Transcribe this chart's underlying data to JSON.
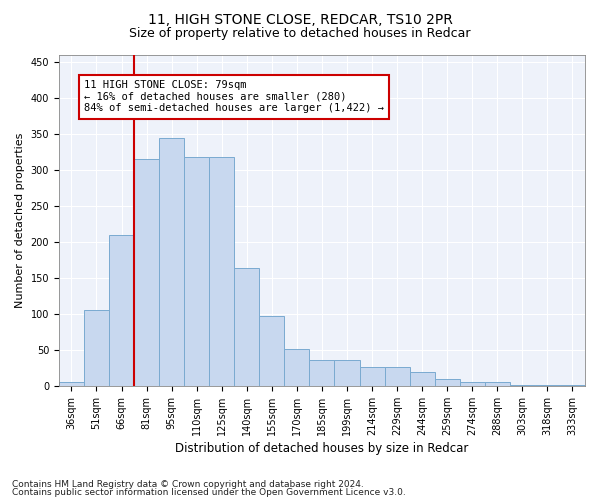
{
  "title1": "11, HIGH STONE CLOSE, REDCAR, TS10 2PR",
  "title2": "Size of property relative to detached houses in Redcar",
  "xlabel": "Distribution of detached houses by size in Redcar",
  "ylabel": "Number of detached properties",
  "categories": [
    "36sqm",
    "51sqm",
    "66sqm",
    "81sqm",
    "95sqm",
    "110sqm",
    "125sqm",
    "140sqm",
    "155sqm",
    "170sqm",
    "185sqm",
    "199sqm",
    "214sqm",
    "229sqm",
    "244sqm",
    "259sqm",
    "274sqm",
    "288sqm",
    "303sqm",
    "318sqm",
    "333sqm"
  ],
  "values": [
    6,
    106,
    210,
    316,
    344,
    318,
    318,
    164,
    97,
    51,
    36,
    36,
    27,
    27,
    19,
    10,
    5,
    5,
    2,
    1,
    1
  ],
  "bar_color": "#c8d8ef",
  "bar_edge_color": "#7aaad0",
  "vline_color": "#cc0000",
  "vline_xindex": 2.5,
  "annotation_text": "11 HIGH STONE CLOSE: 79sqm\n← 16% of detached houses are smaller (280)\n84% of semi-detached houses are larger (1,422) →",
  "annotation_box_color": "#cc0000",
  "ylim": [
    0,
    460
  ],
  "yticks": [
    0,
    50,
    100,
    150,
    200,
    250,
    300,
    350,
    400,
    450
  ],
  "footer1": "Contains HM Land Registry data © Crown copyright and database right 2024.",
  "footer2": "Contains public sector information licensed under the Open Government Licence v3.0.",
  "bg_color": "#eef2fa",
  "grid_color": "#ffffff",
  "title1_fontsize": 10,
  "title2_fontsize": 9,
  "xlabel_fontsize": 8.5,
  "ylabel_fontsize": 8,
  "tick_fontsize": 7,
  "footer_fontsize": 6.5,
  "ann_fontsize": 7.5
}
